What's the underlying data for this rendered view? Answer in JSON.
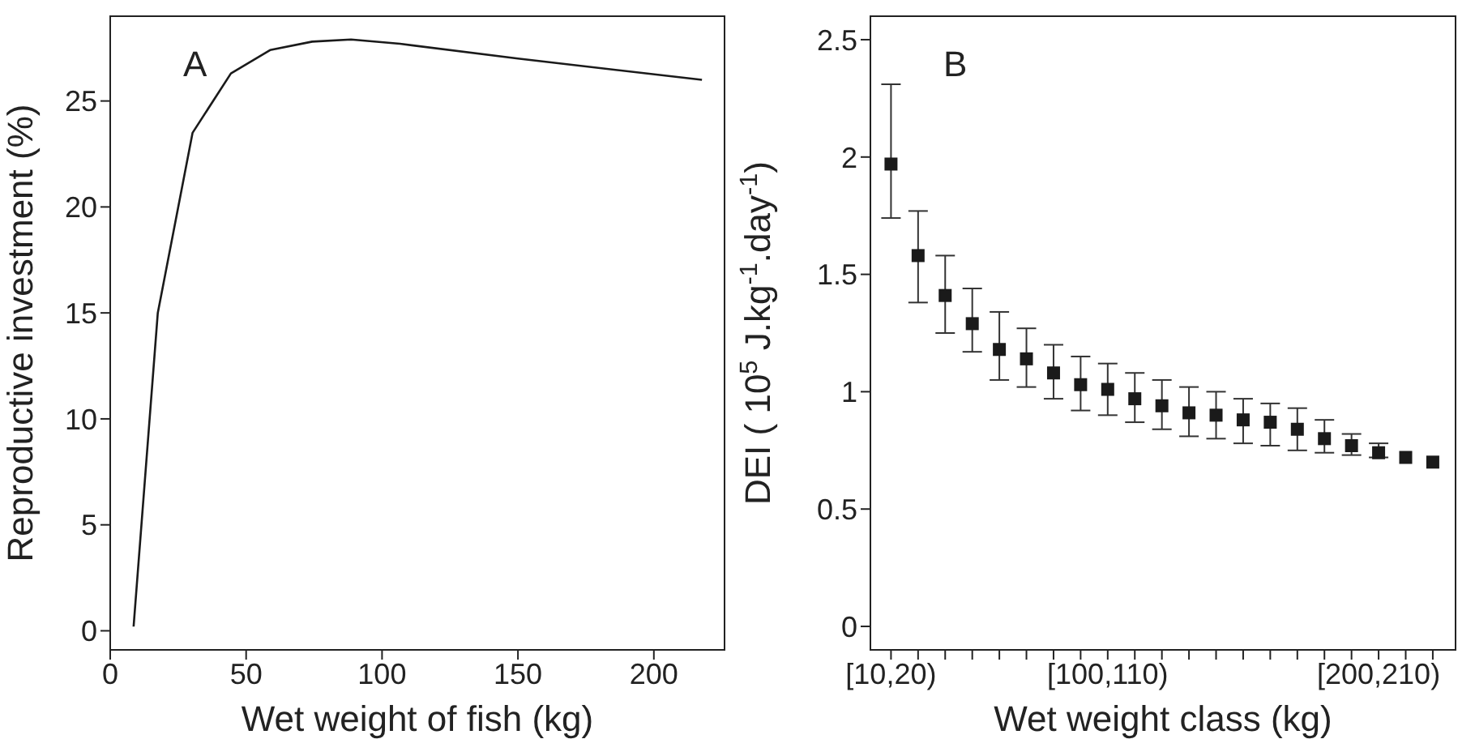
{
  "chart_data": [
    {
      "type": "line",
      "xlabel": "Wet weight of fish (kg)",
      "ylabel": "Reproductive investment (%)",
      "annotations": [
        "A"
      ],
      "x": [
        8.6,
        17.5,
        30.3,
        44.4,
        58.8,
        74.3,
        88.6,
        106.6,
        150,
        217.7
      ],
      "series": [
        {
          "color": "#1a1a1a",
          "values": [
            0.2,
            15.0,
            23.5,
            26.3,
            27.4,
            27.8,
            27.9,
            27.7,
            27.0,
            26.0
          ]
        }
      ],
      "xlim": [
        0,
        226
      ],
      "xticks": [
        0,
        50,
        100,
        150,
        200
      ],
      "ylim": [
        -0.9,
        29
      ],
      "yticks": [
        0,
        5,
        10,
        15,
        20,
        25
      ],
      "marker": "none",
      "line_style": "solid"
    },
    {
      "type": "scatter",
      "xlabel": "Wet weight class (kg)",
      "ylabel": "DEI ( 10$^{5}$ J.kg$^{-1}$.day$^{-1}$)",
      "annotations": [
        "B"
      ],
      "categories": [
        "[10,20)",
        null,
        null,
        null,
        null,
        null,
        null,
        null,
        "[100,110)",
        null,
        null,
        null,
        null,
        null,
        null,
        null,
        null,
        null,
        "[200,210)",
        null,
        null
      ],
      "series": [
        {
          "color": "#1a1a1a",
          "values": [
            1.97,
            1.58,
            1.41,
            1.29,
            1.18,
            1.14,
            1.08,
            1.03,
            1.01,
            0.97,
            0.94,
            0.91,
            0.9,
            0.88,
            0.87,
            0.84,
            0.8,
            0.77,
            0.74,
            0.72,
            0.7
          ],
          "errors": [
            [
              1.74,
              2.31
            ],
            [
              1.38,
              1.77
            ],
            [
              1.25,
              1.58
            ],
            [
              1.17,
              1.44
            ],
            [
              1.05,
              1.34
            ],
            [
              1.02,
              1.27
            ],
            [
              0.97,
              1.2
            ],
            [
              0.92,
              1.15
            ],
            [
              0.9,
              1.12
            ],
            [
              0.87,
              1.08
            ],
            [
              0.84,
              1.05
            ],
            [
              0.81,
              1.02
            ],
            [
              0.8,
              1.0
            ],
            [
              0.78,
              0.97
            ],
            [
              0.77,
              0.95
            ],
            [
              0.75,
              0.93
            ],
            [
              0.74,
              0.88
            ],
            [
              0.73,
              0.82
            ],
            [
              0.72,
              0.78
            ],
            null,
            null
          ]
        }
      ],
      "ylim": [
        -0.1,
        2.6
      ],
      "yticks": [
        0,
        0.5,
        1,
        1.5,
        2,
        2.5
      ],
      "marker": "square"
    }
  ]
}
